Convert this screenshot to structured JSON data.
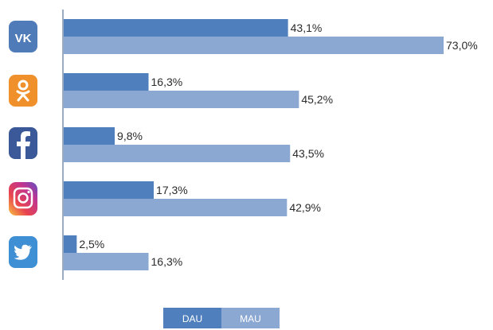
{
  "chart_data": {
    "type": "bar",
    "orientation": "horizontal",
    "categories": [
      "VK",
      "Odnoklassniki",
      "Facebook",
      "Instagram",
      "Twitter"
    ],
    "category_icons": [
      "vk-icon",
      "odnoklassniki-icon",
      "facebook-icon",
      "instagram-icon",
      "twitter-icon"
    ],
    "series": [
      {
        "name": "DAU",
        "values": [
          43.1,
          16.3,
          9.8,
          17.3,
          2.5
        ],
        "labels": [
          "43,1%",
          "16,3%",
          "9,8%",
          "17,3%",
          "2,5%"
        ],
        "color": "#4f7fbd"
      },
      {
        "name": "MAU",
        "values": [
          73.0,
          45.2,
          43.5,
          42.9,
          16.3
        ],
        "labels": [
          "73,0%",
          "45,2%",
          "43,5%",
          "42,9%",
          "16,3%"
        ],
        "color": "#8ba8d2"
      }
    ],
    "xlim": [
      0,
      73.0
    ],
    "legend_position": "bottom-center",
    "grid": false
  },
  "legend": {
    "dau_label": "DAU",
    "mau_label": "MAU"
  },
  "icons": {
    "vk_text": "VK",
    "ok_color": "#f0902a",
    "vk_color": "#4f7cb8",
    "fb_color": "#3b5998",
    "tw_color": "#3f8fd4"
  }
}
